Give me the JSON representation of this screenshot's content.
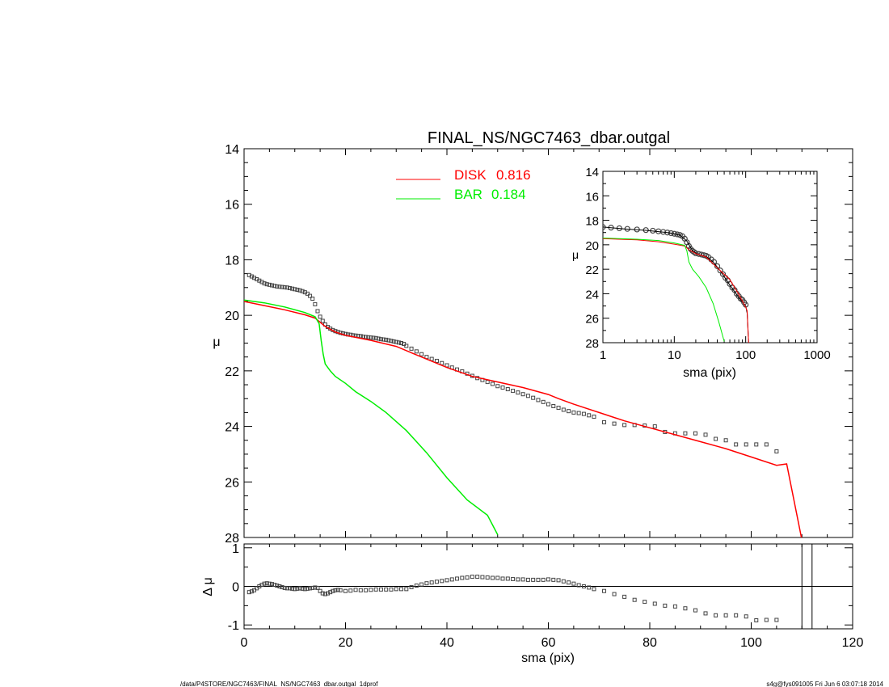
{
  "chart_data": [
    {
      "type": "scatter",
      "title": "FINAL_NS/NGC7463_dbar.outgal",
      "xlabel": "",
      "ylabel": "μ",
      "xlim": [
        0,
        120
      ],
      "ylim": [
        28,
        14
      ],
      "y_inverted": true,
      "yticks": [
        "14",
        "16",
        "18",
        "20",
        "22",
        "24",
        "26",
        "28"
      ],
      "legend": {
        "placement": "top-center",
        "entries": [
          {
            "label": "DISK",
            "value": "0.816",
            "color": "#ff0000"
          },
          {
            "label": "BAR",
            "value": "0.184",
            "color": "#00ee00"
          }
        ]
      },
      "series": [
        {
          "kind": "points",
          "marker": "square",
          "color": "#444444",
          "x": [
            1,
            1.5,
            2,
            2.5,
            3,
            3.5,
            4,
            4.5,
            5,
            5.5,
            6,
            6.5,
            7,
            7.5,
            8,
            8.5,
            9,
            9.5,
            10,
            10.5,
            11,
            11.5,
            12,
            12.5,
            13,
            13.5,
            14,
            14.5,
            15,
            15.5,
            16,
            16.5,
            17,
            17.5,
            18,
            18.5,
            19,
            19.5,
            20,
            20.5,
            21,
            21.5,
            22,
            22.5,
            23,
            23.5,
            24,
            24.5,
            25,
            25.5,
            26,
            26.5,
            27,
            27.5,
            28,
            28.5,
            29,
            29.5,
            30,
            30.5,
            31,
            31.5,
            32,
            33,
            34,
            35,
            36,
            37,
            38,
            39,
            40,
            41,
            42,
            43,
            44,
            45,
            46,
            47,
            48,
            49,
            50,
            51,
            52,
            53,
            54,
            55,
            56,
            57,
            58,
            59,
            60,
            61,
            62,
            63,
            64,
            65,
            66,
            67,
            68,
            69,
            71,
            73,
            75,
            77,
            79,
            81,
            83,
            85,
            87,
            89,
            91,
            93,
            95,
            97,
            99,
            101,
            103,
            105
          ],
          "y": [
            18.55,
            18.6,
            18.65,
            18.7,
            18.75,
            18.8,
            18.85,
            18.88,
            18.9,
            18.92,
            18.94,
            18.96,
            18.97,
            18.98,
            18.99,
            19.0,
            19.02,
            19.04,
            19.06,
            19.08,
            19.1,
            19.13,
            19.17,
            19.22,
            19.3,
            19.4,
            19.6,
            19.85,
            20.05,
            20.2,
            20.33,
            20.42,
            20.48,
            20.53,
            20.57,
            20.6,
            20.63,
            20.65,
            20.67,
            20.69,
            20.7,
            20.72,
            20.73,
            20.74,
            20.75,
            20.77,
            20.78,
            20.79,
            20.8,
            20.81,
            20.82,
            20.84,
            20.86,
            20.87,
            20.88,
            20.9,
            20.92,
            20.94,
            20.96,
            20.98,
            21.0,
            21.03,
            21.1,
            21.2,
            21.3,
            21.4,
            21.5,
            21.57,
            21.64,
            21.72,
            21.8,
            21.88,
            21.95,
            22.02,
            22.1,
            22.18,
            22.26,
            22.33,
            22.4,
            22.47,
            22.55,
            22.6,
            22.66,
            22.72,
            22.78,
            22.84,
            22.9,
            22.97,
            23.05,
            23.12,
            23.2,
            23.27,
            23.33,
            23.4,
            23.45,
            23.5,
            23.52,
            23.55,
            23.6,
            23.65,
            23.85,
            23.9,
            23.95,
            23.95,
            23.97,
            24.0,
            24.2,
            24.25,
            24.25,
            24.25,
            24.3,
            24.45,
            24.5,
            24.65,
            24.65,
            24.65,
            24.65,
            24.9
          ]
        },
        {
          "kind": "line",
          "name": "DISK",
          "color": "#ff0000",
          "x": [
            0,
            4,
            8,
            12,
            14,
            15,
            16,
            18,
            20,
            25,
            30,
            35,
            40,
            45,
            50,
            55,
            60,
            62,
            65,
            70,
            75,
            80,
            85,
            90,
            95,
            100,
            105,
            107,
            110
          ],
          "y": [
            19.5,
            19.65,
            19.8,
            19.98,
            20.1,
            20.25,
            20.4,
            20.6,
            20.72,
            20.9,
            21.12,
            21.5,
            21.88,
            22.2,
            22.4,
            22.6,
            22.85,
            23.0,
            23.2,
            23.5,
            23.8,
            24.05,
            24.3,
            24.55,
            24.8,
            25.1,
            25.4,
            25.35,
            28.1
          ]
        },
        {
          "kind": "line",
          "name": "BAR",
          "color": "#00ee00",
          "x": [
            0,
            4,
            8,
            12,
            14,
            14.8,
            15.2,
            15.6,
            16,
            17,
            18,
            20,
            22,
            25,
            28,
            32,
            36,
            40,
            44,
            48,
            50
          ],
          "y": [
            19.45,
            19.55,
            19.7,
            19.9,
            20.05,
            20.3,
            20.9,
            21.4,
            21.75,
            22.0,
            22.2,
            22.45,
            22.75,
            23.1,
            23.5,
            24.15,
            24.95,
            25.85,
            26.65,
            27.2,
            27.9
          ]
        }
      ]
    },
    {
      "type": "line",
      "title": "",
      "xlabel": "sma (pix)",
      "ylabel": "μ",
      "xscale": "log",
      "xlim": [
        1,
        1000
      ],
      "ylim": [
        28,
        14
      ],
      "y_inverted": true,
      "xticks": [
        "1",
        "10",
        "100",
        "1000"
      ],
      "yticks": [
        "14",
        "16",
        "18",
        "20",
        "22",
        "24",
        "26",
        "28"
      ],
      "series": [
        {
          "kind": "points",
          "color": "#444444",
          "x": [
            1,
            1.3,
            1.7,
            2.2,
            3,
            4,
            5,
            6,
            7,
            8,
            9,
            10,
            11,
            12,
            13,
            14,
            15,
            16,
            17,
            18,
            19,
            20,
            22,
            24,
            26,
            28,
            30,
            33,
            36,
            40,
            44,
            48,
            52,
            56,
            60,
            65,
            70,
            75,
            80,
            85,
            90,
            95,
            100
          ],
          "y": [
            18.55,
            18.6,
            18.65,
            18.7,
            18.75,
            18.8,
            18.85,
            18.9,
            18.95,
            19.0,
            19.05,
            19.1,
            19.15,
            19.2,
            19.3,
            19.5,
            19.8,
            20.1,
            20.35,
            20.5,
            20.6,
            20.7,
            20.75,
            20.8,
            20.85,
            20.9,
            21.0,
            21.2,
            21.4,
            21.75,
            22.1,
            22.4,
            22.7,
            22.9,
            23.2,
            23.5,
            23.7,
            24.0,
            24.2,
            24.4,
            24.5,
            24.7,
            24.9
          ]
        },
        {
          "kind": "line",
          "color": "#000000",
          "x": [
            1,
            2,
            4,
            8,
            12,
            15,
            18,
            22,
            28,
            35,
            45,
            60,
            80,
            100,
            105,
            110
          ],
          "y": [
            18.55,
            18.7,
            18.82,
            19.0,
            19.2,
            19.7,
            20.5,
            20.8,
            20.95,
            21.4,
            22.2,
            23.3,
            24.3,
            25.0,
            25.6,
            28.0
          ]
        },
        {
          "kind": "line",
          "color": "#ff0000",
          "x": [
            1,
            3,
            6,
            10,
            14,
            16,
            20,
            28,
            40,
            60,
            80,
            100,
            105,
            110
          ],
          "y": [
            19.5,
            19.6,
            19.75,
            19.95,
            20.1,
            20.4,
            20.72,
            21.0,
            21.88,
            22.85,
            24.05,
            25.1,
            25.4,
            28.0
          ]
        },
        {
          "kind": "line",
          "color": "#00ee00",
          "x": [
            1,
            3,
            6,
            10,
            14,
            15,
            16,
            18,
            22,
            28,
            35,
            42,
            50
          ],
          "y": [
            19.45,
            19.55,
            19.65,
            19.85,
            20.05,
            20.5,
            21.4,
            22.0,
            22.6,
            23.5,
            24.8,
            26.3,
            27.9
          ]
        }
      ]
    },
    {
      "type": "scatter",
      "title": "",
      "xlabel": "sma (pix)",
      "ylabel": "Δ μ",
      "xlim": [
        0,
        120
      ],
      "ylim": [
        -1.1,
        1.1
      ],
      "xticks": [
        "0",
        "20",
        "40",
        "60",
        "80",
        "100",
        "120"
      ],
      "yticks": [
        "1",
        "0",
        "-1"
      ],
      "vertical_lines": [
        110,
        112
      ],
      "series": [
        {
          "kind": "points",
          "marker": "square",
          "color": "#444444",
          "x": [
            1,
            1.5,
            2,
            2.5,
            3,
            3.5,
            4,
            4.5,
            5,
            5.5,
            6,
            6.5,
            7,
            7.5,
            8,
            8.5,
            9,
            9.5,
            10,
            10.5,
            11,
            11.5,
            12,
            12.5,
            13,
            13.5,
            14,
            14.5,
            15,
            15.5,
            16,
            16.5,
            17,
            17.5,
            18,
            18.5,
            19,
            20,
            21,
            22,
            23,
            24,
            25,
            26,
            27,
            28,
            29,
            30,
            31,
            32,
            33,
            34,
            35,
            36,
            37,
            38,
            39,
            40,
            41,
            42,
            43,
            44,
            45,
            46,
            47,
            48,
            49,
            50,
            51,
            52,
            53,
            54,
            55,
            56,
            57,
            58,
            59,
            60,
            61,
            62,
            63,
            64,
            65,
            66,
            67,
            68,
            69,
            71,
            73,
            75,
            77,
            79,
            81,
            83,
            85,
            87,
            89,
            91,
            93,
            95,
            97,
            99,
            101,
            103,
            105
          ],
          "y": [
            -0.15,
            -0.13,
            -0.1,
            -0.05,
            0,
            0.04,
            0.07,
            0.08,
            0.07,
            0.06,
            0.04,
            0.02,
            0,
            -0.02,
            -0.04,
            -0.05,
            -0.05,
            -0.06,
            -0.07,
            -0.06,
            -0.05,
            -0.06,
            -0.07,
            -0.06,
            -0.05,
            -0.04,
            -0.03,
            -0.04,
            -0.12,
            -0.18,
            -0.2,
            -0.18,
            -0.15,
            -0.12,
            -0.1,
            -0.09,
            -0.1,
            -0.12,
            -0.11,
            -0.09,
            -0.1,
            -0.1,
            -0.09,
            -0.08,
            -0.08,
            -0.08,
            -0.08,
            -0.07,
            -0.07,
            -0.07,
            -0.02,
            0.02,
            0.05,
            0.08,
            0.1,
            0.12,
            0.14,
            0.16,
            0.18,
            0.2,
            0.22,
            0.23,
            0.25,
            0.25,
            0.24,
            0.23,
            0.22,
            0.22,
            0.2,
            0.2,
            0.19,
            0.18,
            0.18,
            0.17,
            0.17,
            0.17,
            0.17,
            0.18,
            0.17,
            0.16,
            0.13,
            0.1,
            0.07,
            0.03,
            0,
            -0.03,
            -0.07,
            -0.12,
            -0.2,
            -0.27,
            -0.35,
            -0.4,
            -0.45,
            -0.5,
            -0.52,
            -0.57,
            -0.62,
            -0.7,
            -0.75,
            -0.75,
            -0.75,
            -0.78,
            -0.88,
            -0.87,
            -0.87
          ]
        }
      ]
    }
  ],
  "footer": {
    "left": "/data/P4STORE/NGC7463/FINAL_NS/NGC7463_dbar.outgal_1dprof",
    "right": "s4g@fys091005  Fri Jun  6 03:07:18 2014"
  }
}
